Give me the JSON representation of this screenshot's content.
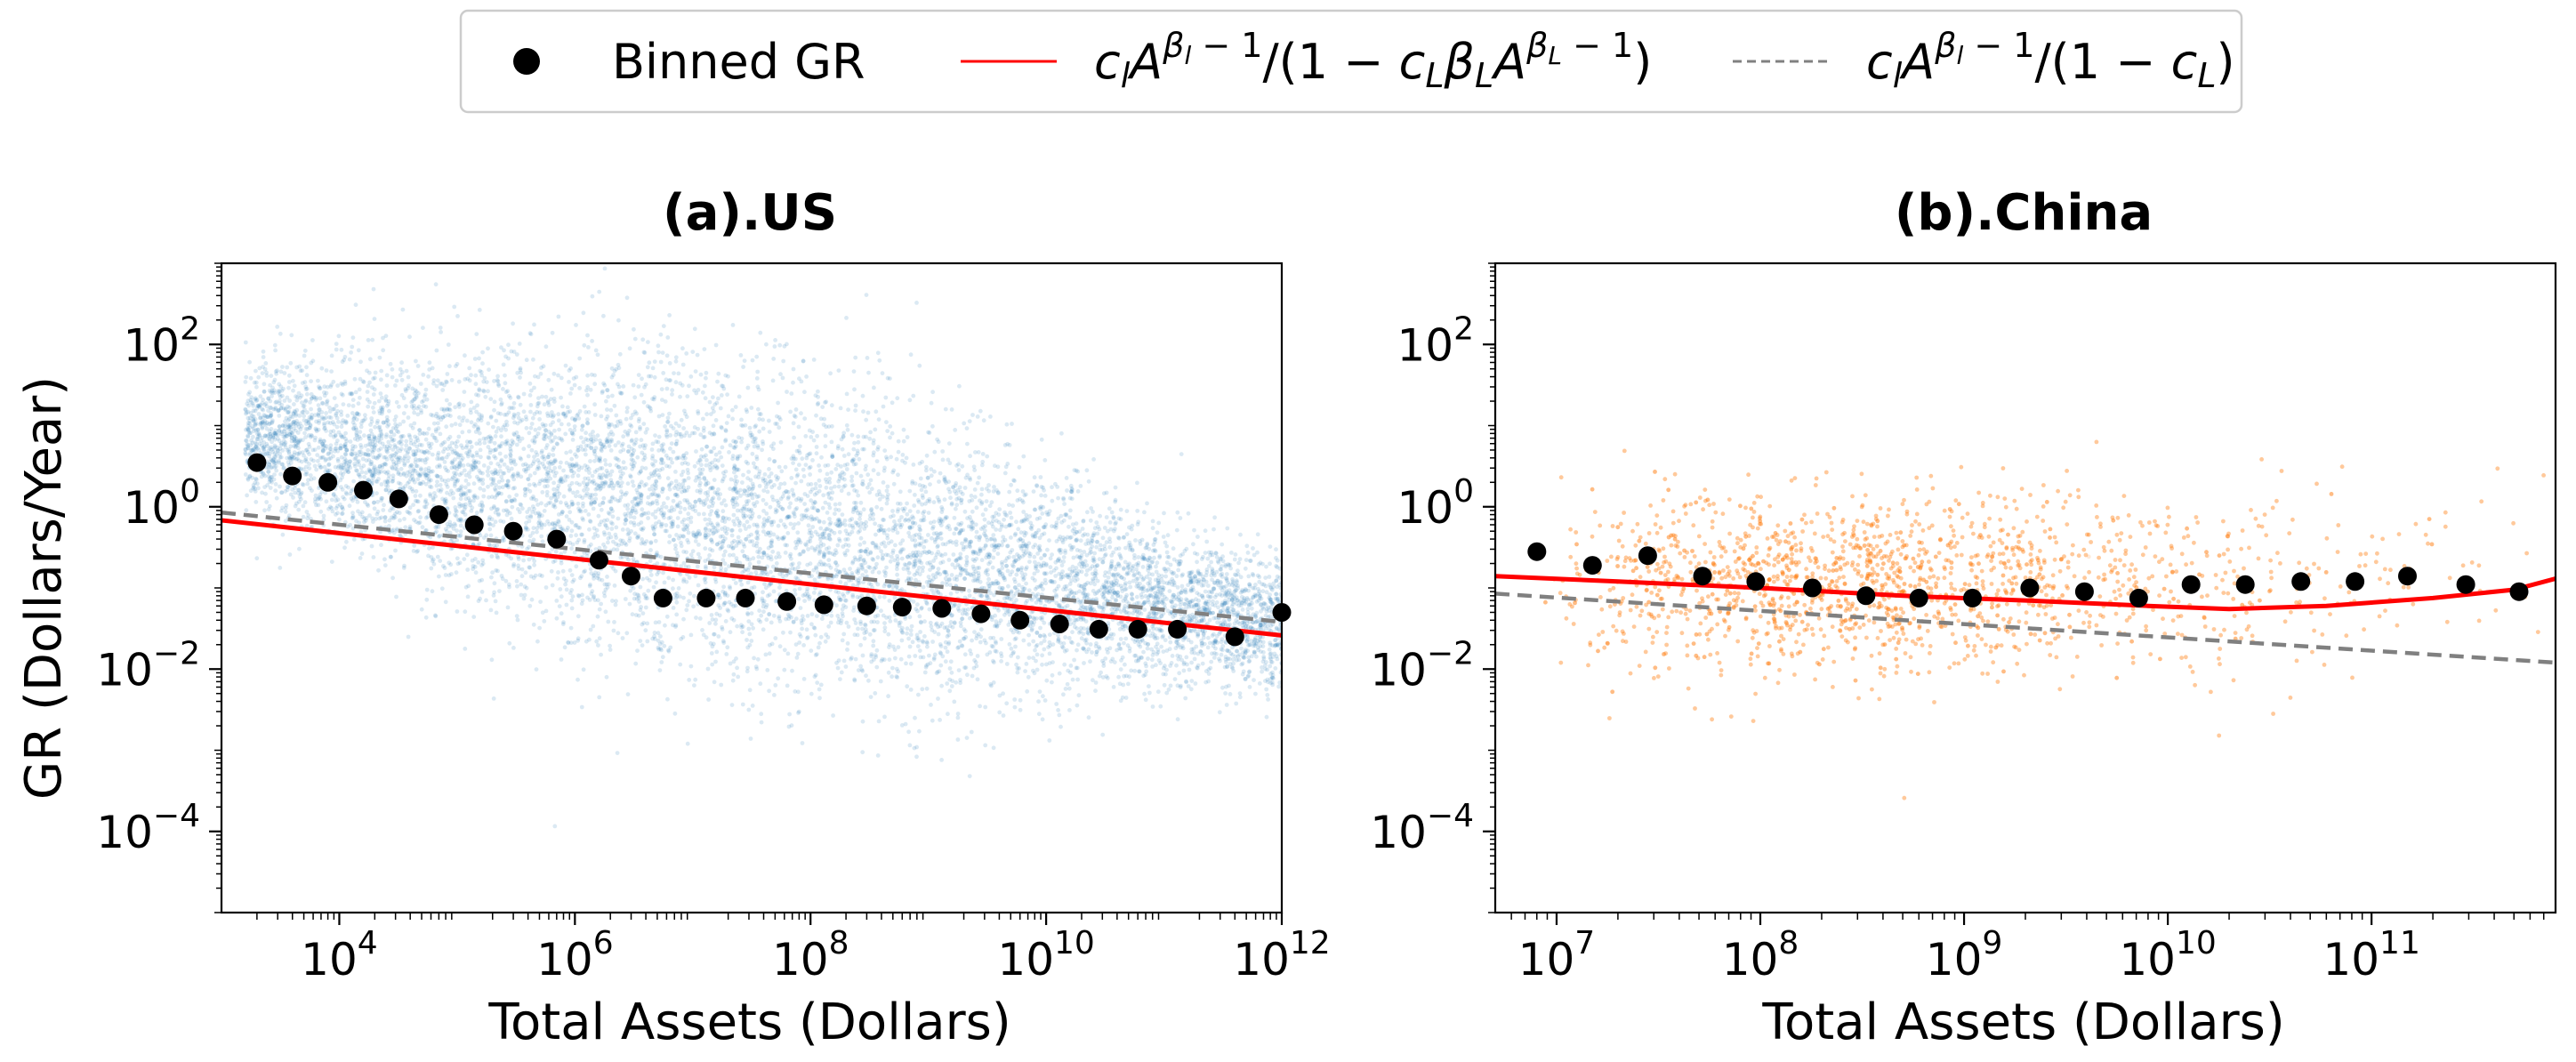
{
  "legend": {
    "entries": [
      {
        "label": "Binned GR",
        "marker": "dot",
        "color": "#000000"
      },
      {
        "label": "c_l·A^(β_l − 1)/(1 − c_L·β_L·A^(β_L − 1))",
        "marker": "solid-line",
        "color": "#ff0000"
      },
      {
        "label": "c_l·A^(β_l − 1)/(1 − c_L)",
        "marker": "dashed-line",
        "color": "#808080"
      }
    ]
  },
  "chart_data": [
    {
      "type": "scatter",
      "title": "(a).US",
      "xlabel": "Total Assets (Dollars)",
      "ylabel": "GR (Dollars/Year)",
      "x_scale": "log",
      "y_scale": "log",
      "xlim": [
        1000,
        1000000000000
      ],
      "ylim": [
        1e-05,
        1000
      ],
      "x_ticks": [
        {
          "value": 10000,
          "base": "10",
          "exp": "4"
        },
        {
          "value": 1000000,
          "base": "10",
          "exp": "6"
        },
        {
          "value": 100000000,
          "base": "10",
          "exp": "8"
        },
        {
          "value": 10000000000,
          "base": "10",
          "exp": "10"
        },
        {
          "value": 1000000000000,
          "base": "10",
          "exp": "12"
        }
      ],
      "y_ticks": [
        {
          "value": 0.0001,
          "base": "10",
          "exp": "−4"
        },
        {
          "value": 0.01,
          "base": "10",
          "exp": "−2"
        },
        {
          "value": 1,
          "base": "10",
          "exp": "0"
        },
        {
          "value": 100,
          "base": "10",
          "exp": "2"
        }
      ],
      "scatter_color": "#1f77b4",
      "series": [
        {
          "name": "Binned GR",
          "kind": "points",
          "color": "#000000",
          "x": [
            2000,
            4000,
            8000,
            16000,
            32000,
            70000,
            140000,
            300000,
            700000,
            1600000,
            3000000,
            5600000,
            13000000,
            28000000,
            63000000,
            130000000,
            300000000,
            600000000,
            1300000000,
            2800000000,
            6000000000,
            13000000000,
            28000000000,
            60000000000,
            130000000000,
            400000000000,
            1000000000000
          ],
          "y": [
            3.5,
            2.4,
            2.0,
            1.6,
            1.25,
            0.8,
            0.6,
            0.5,
            0.4,
            0.22,
            0.14,
            0.075,
            0.075,
            0.075,
            0.068,
            0.062,
            0.06,
            0.058,
            0.056,
            0.048,
            0.04,
            0.036,
            0.031,
            0.031,
            0.031,
            0.025,
            0.05
          ]
        },
        {
          "name": "c_l·A^(β_l − 1)/(1 − c_L·β_L·A^(β_L − 1))",
          "kind": "line",
          "color": "#ff0000",
          "x": [
            1000,
            1000000000000
          ],
          "y": [
            0.68,
            0.026
          ]
        },
        {
          "name": "c_l·A^(β_l − 1)/(1 − c_L)",
          "kind": "dashed",
          "color": "#808080",
          "x": [
            1000,
            1000000000000
          ],
          "y": [
            0.85,
            0.038
          ]
        }
      ]
    },
    {
      "type": "scatter",
      "title": "(b).China",
      "xlabel": "Total Assets (Dollars)",
      "ylabel": "",
      "x_scale": "log",
      "y_scale": "log",
      "xlim": [
        5000000,
        800000000000
      ],
      "ylim": [
        1e-05,
        1000
      ],
      "x_ticks": [
        {
          "value": 10000000,
          "base": "10",
          "exp": "7"
        },
        {
          "value": 100000000,
          "base": "10",
          "exp": "8"
        },
        {
          "value": 1000000000,
          "base": "10",
          "exp": "9"
        },
        {
          "value": 10000000000,
          "base": "10",
          "exp": "10"
        },
        {
          "value": 100000000000,
          "base": "10",
          "exp": "11"
        }
      ],
      "y_ticks": [
        {
          "value": 0.0001,
          "base": "10",
          "exp": "−4"
        },
        {
          "value": 0.01,
          "base": "10",
          "exp": "−2"
        },
        {
          "value": 1,
          "base": "10",
          "exp": "0"
        },
        {
          "value": 100,
          "base": "10",
          "exp": "2"
        }
      ],
      "scatter_color": "#ff7f0e",
      "series": [
        {
          "name": "Binned GR",
          "kind": "points",
          "color": "#000000",
          "x": [
            8000000,
            15000000,
            28000000,
            52000000,
            95000000,
            180000000,
            330000000,
            600000000,
            1100000000,
            2100000000,
            3900000000,
            7200000000,
            13000000000,
            24000000000,
            45000000000,
            83000000000,
            150000000000,
            290000000000,
            530000000000
          ],
          "y": [
            0.28,
            0.19,
            0.25,
            0.14,
            0.12,
            0.1,
            0.08,
            0.075,
            0.075,
            0.1,
            0.09,
            0.075,
            0.11,
            0.11,
            0.12,
            0.12,
            0.14,
            0.11,
            0.09
          ],
          "row_note": ""
        },
        {
          "name": "c_l·A^(β_l − 1)/(1 − c_L·β_L·A^(β_L − 1))",
          "kind": "line",
          "color": "#ff0000",
          "x": [
            5000000,
            20000000,
            100000000,
            500000000,
            2000000000,
            8000000000,
            20000000000,
            60000000000,
            200000000000,
            500000000000,
            800000000000
          ],
          "y": [
            0.14,
            0.12,
            0.1,
            0.08,
            0.07,
            0.06,
            0.055,
            0.06,
            0.075,
            0.095,
            0.13
          ]
        },
        {
          "name": "c_l·A^(β_l − 1)/(1 − c_L)",
          "kind": "dashed",
          "color": "#808080",
          "x": [
            5000000,
            800000000000
          ],
          "y": [
            0.085,
            0.012
          ]
        }
      ]
    }
  ]
}
